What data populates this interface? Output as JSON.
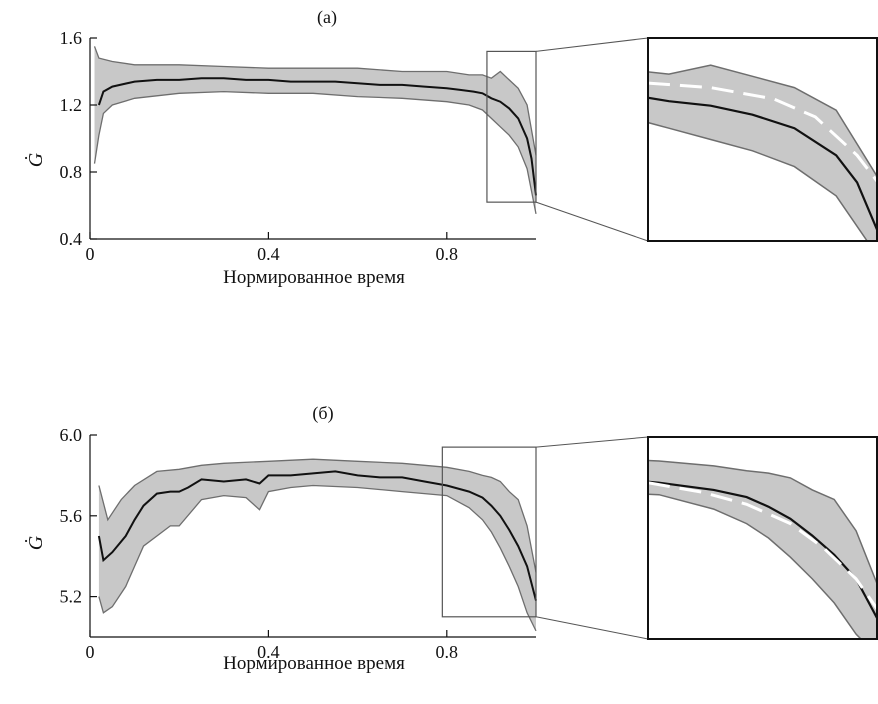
{
  "chart_data": [
    {
      "type": "line",
      "panel_label": "(а)",
      "xlabel": "Нормированное время",
      "ylabel": "Ġ",
      "xlim": [
        0,
        1.0
      ],
      "ylim": [
        0.4,
        1.6
      ],
      "x_ticks": [
        "0",
        "0.4",
        "0.8"
      ],
      "y_ticks": [
        "0.4",
        "0.8",
        "1.2",
        "1.6"
      ],
      "grid": false,
      "series": [
        {
          "role": "mean",
          "x": [
            0.02,
            0.03,
            0.05,
            0.1,
            0.15,
            0.2,
            0.25,
            0.3,
            0.35,
            0.4,
            0.45,
            0.5,
            0.55,
            0.6,
            0.65,
            0.7,
            0.75,
            0.8,
            0.83,
            0.86,
            0.88,
            0.9,
            0.92,
            0.94,
            0.96,
            0.98,
            0.99,
            1.0
          ],
          "y": [
            1.2,
            1.28,
            1.31,
            1.34,
            1.35,
            1.35,
            1.36,
            1.36,
            1.35,
            1.35,
            1.34,
            1.34,
            1.34,
            1.33,
            1.32,
            1.32,
            1.31,
            1.3,
            1.29,
            1.28,
            1.27,
            1.24,
            1.22,
            1.18,
            1.12,
            1.0,
            0.88,
            0.66
          ]
        },
        {
          "role": "upper",
          "x": [
            0.01,
            0.02,
            0.05,
            0.1,
            0.2,
            0.3,
            0.4,
            0.5,
            0.6,
            0.7,
            0.8,
            0.85,
            0.88,
            0.9,
            0.92,
            0.94,
            0.96,
            0.98,
            1.0
          ],
          "y": [
            1.55,
            1.48,
            1.46,
            1.44,
            1.44,
            1.43,
            1.42,
            1.42,
            1.42,
            1.4,
            1.4,
            1.38,
            1.38,
            1.36,
            1.4,
            1.35,
            1.3,
            1.2,
            0.9
          ]
        },
        {
          "role": "lower",
          "x": [
            0.01,
            0.02,
            0.03,
            0.05,
            0.1,
            0.2,
            0.3,
            0.4,
            0.5,
            0.6,
            0.7,
            0.8,
            0.85,
            0.88,
            0.9,
            0.92,
            0.94,
            0.96,
            0.98,
            1.0
          ],
          "y": [
            0.85,
            1.02,
            1.15,
            1.2,
            1.24,
            1.27,
            1.28,
            1.27,
            1.27,
            1.25,
            1.24,
            1.22,
            1.2,
            1.17,
            1.12,
            1.07,
            1.02,
            0.95,
            0.82,
            0.55
          ]
        }
      ],
      "zoom_region": {
        "x": [
          0.89,
          1.0
        ],
        "y": [
          0.62,
          1.52
        ]
      },
      "inset": {
        "xlim": [
          0.89,
          1.0
        ],
        "ylim": [
          0.62,
          1.52
        ],
        "fit": {
          "x": [
            0.89,
            0.92,
            0.95,
            0.97,
            0.99,
            1.0
          ],
          "y": [
            1.32,
            1.3,
            1.25,
            1.17,
            1.0,
            0.88
          ]
        }
      }
    },
    {
      "type": "line",
      "panel_label": "(б)",
      "xlabel": "Нормированное время",
      "ylabel": "Ġ",
      "xlim": [
        0,
        1.0
      ],
      "ylim": [
        5.0,
        6.0
      ],
      "x_ticks": [
        "0",
        "0.4",
        "0.8"
      ],
      "y_ticks": [
        "5.2",
        "5.6",
        "6.0"
      ],
      "grid": false,
      "series": [
        {
          "role": "mean",
          "x": [
            0.02,
            0.03,
            0.05,
            0.08,
            0.1,
            0.12,
            0.15,
            0.18,
            0.2,
            0.22,
            0.25,
            0.3,
            0.35,
            0.38,
            0.4,
            0.45,
            0.5,
            0.55,
            0.6,
            0.65,
            0.7,
            0.75,
            0.8,
            0.85,
            0.88,
            0.9,
            0.92,
            0.94,
            0.96,
            0.98,
            1.0
          ],
          "y": [
            5.5,
            5.38,
            5.42,
            5.5,
            5.58,
            5.65,
            5.71,
            5.72,
            5.72,
            5.74,
            5.78,
            5.77,
            5.78,
            5.76,
            5.8,
            5.8,
            5.81,
            5.82,
            5.8,
            5.79,
            5.79,
            5.77,
            5.75,
            5.72,
            5.69,
            5.65,
            5.6,
            5.53,
            5.45,
            5.35,
            5.18
          ]
        },
        {
          "role": "upper",
          "x": [
            0.02,
            0.04,
            0.07,
            0.1,
            0.15,
            0.2,
            0.25,
            0.3,
            0.4,
            0.5,
            0.6,
            0.7,
            0.8,
            0.85,
            0.88,
            0.9,
            0.92,
            0.94,
            0.96,
            0.98,
            1.0
          ],
          "y": [
            5.75,
            5.58,
            5.68,
            5.75,
            5.82,
            5.83,
            5.85,
            5.86,
            5.87,
            5.88,
            5.87,
            5.86,
            5.84,
            5.82,
            5.8,
            5.79,
            5.77,
            5.72,
            5.68,
            5.55,
            5.32
          ]
        },
        {
          "role": "lower",
          "x": [
            0.02,
            0.03,
            0.05,
            0.08,
            0.1,
            0.12,
            0.15,
            0.18,
            0.2,
            0.25,
            0.3,
            0.35,
            0.38,
            0.4,
            0.45,
            0.5,
            0.6,
            0.7,
            0.8,
            0.85,
            0.88,
            0.9,
            0.92,
            0.94,
            0.96,
            0.98,
            1.0
          ],
          "y": [
            5.2,
            5.12,
            5.15,
            5.25,
            5.35,
            5.45,
            5.5,
            5.55,
            5.55,
            5.68,
            5.7,
            5.69,
            5.63,
            5.72,
            5.74,
            5.75,
            5.74,
            5.72,
            5.7,
            5.64,
            5.58,
            5.52,
            5.44,
            5.35,
            5.25,
            5.12,
            5.03
          ]
        }
      ],
      "zoom_region": {
        "x": [
          0.79,
          1.0
        ],
        "y": [
          5.1,
          5.94
        ]
      },
      "inset": {
        "xlim": [
          0.79,
          1.0
        ],
        "ylim": [
          5.1,
          5.94
        ],
        "fit": {
          "x": [
            0.79,
            0.84,
            0.88,
            0.92,
            0.95,
            0.98,
            1.0
          ],
          "y": [
            5.75,
            5.71,
            5.66,
            5.58,
            5.48,
            5.35,
            5.22
          ]
        }
      }
    }
  ]
}
